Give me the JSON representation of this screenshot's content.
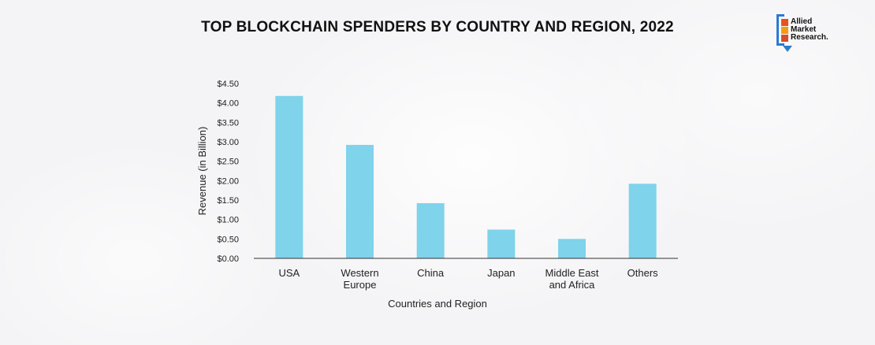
{
  "title": "TOP BLOCKCHAIN SPENDERS BY COUNTRY AND REGION, 2022",
  "logo": {
    "lines": [
      "Allied",
      "Market",
      "Research."
    ],
    "colors": {
      "frame": "#2b7bd0",
      "squares": [
        "#e8511d",
        "#f39c12",
        "#d64d2a"
      ]
    }
  },
  "chart_data": {
    "type": "bar",
    "title": "TOP BLOCKCHAIN SPENDERS BY COUNTRY AND REGION, 2022",
    "categories": [
      [
        "USA"
      ],
      [
        "Western",
        "Europe"
      ],
      [
        "China"
      ],
      [
        "Japan"
      ],
      [
        "Middle East",
        "and Africa"
      ],
      [
        "Others"
      ]
    ],
    "values": [
      4.18,
      2.92,
      1.42,
      0.74,
      0.5,
      1.92
    ],
    "xlabel": "Countries and Region",
    "ylabel": "Revenue (in Billion)",
    "ylim": [
      0,
      4.5
    ],
    "yticks": [
      "$0.00",
      "$0.50",
      "$1.00",
      "$1.50",
      "$2.00",
      "$2.50",
      "$3.00",
      "$3.50",
      "$4.00",
      "$4.50"
    ],
    "bar_color": "#7fd3ea",
    "grid": false,
    "legend": "none"
  }
}
